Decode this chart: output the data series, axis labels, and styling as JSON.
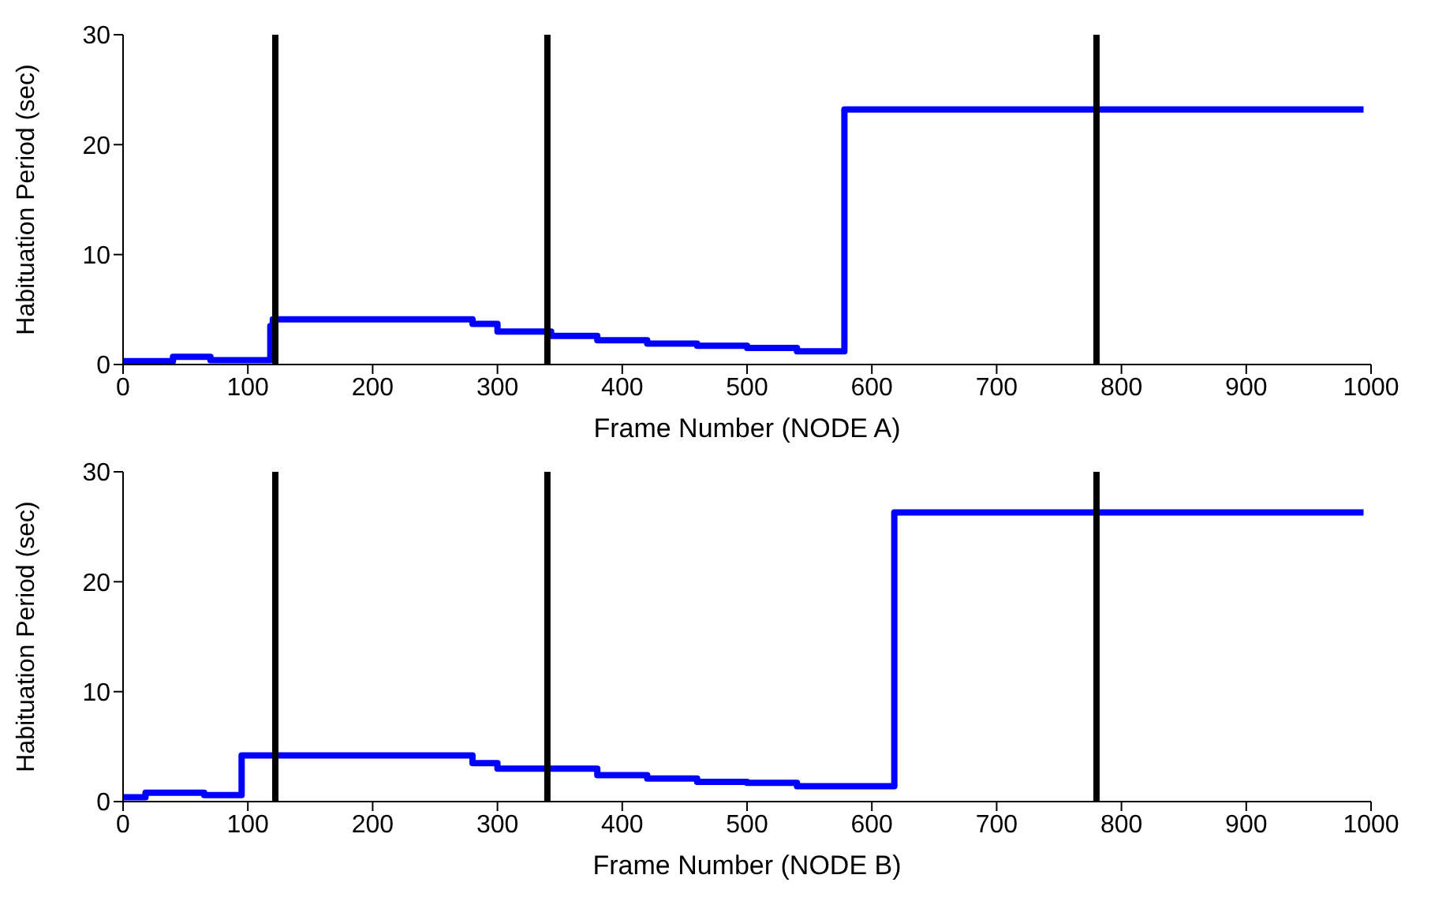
{
  "chart_data": [
    {
      "type": "step",
      "xlabel": "Frame Number (NODE A)",
      "ylabel": "Habituation Period (sec)",
      "xlim": [
        0,
        1000
      ],
      "xticks": [
        0,
        100,
        200,
        300,
        400,
        500,
        600,
        700,
        800,
        900,
        1000
      ],
      "ylim": [
        0,
        30
      ],
      "yticks": [
        0,
        10,
        20,
        30
      ],
      "series": [
        {
          "color": "#0000ff",
          "x": [
            0,
            40,
            70,
            118,
            120,
            280,
            300,
            343,
            380,
            420,
            460,
            500,
            540,
            578,
            994
          ],
          "values": [
            0.3,
            0.7,
            0.4,
            3.5,
            4.1,
            3.7,
            3.0,
            2.6,
            2.2,
            1.9,
            1.7,
            1.5,
            1.2,
            23.2,
            23.2
          ]
        }
      ],
      "ref_lines": [
        {
          "axis": "x",
          "value": 122,
          "color": "#000000"
        },
        {
          "axis": "x",
          "value": 340,
          "color": "#000000"
        },
        {
          "axis": "x",
          "value": 780,
          "color": "#000000"
        }
      ]
    },
    {
      "type": "step",
      "xlabel": "Frame Number (NODE B)",
      "ylabel": "Habituation Period (sec)",
      "xlim": [
        0,
        1000
      ],
      "xticks": [
        0,
        100,
        200,
        300,
        400,
        500,
        600,
        700,
        800,
        900,
        1000
      ],
      "ylim": [
        0,
        30
      ],
      "yticks": [
        0,
        10,
        20,
        30
      ],
      "series": [
        {
          "color": "#0000ff",
          "x": [
            0,
            18,
            65,
            95,
            280,
            300,
            380,
            420,
            460,
            500,
            540,
            618,
            994
          ],
          "values": [
            0.4,
            0.8,
            0.6,
            4.2,
            3.5,
            3.0,
            2.4,
            2.1,
            1.8,
            1.7,
            1.4,
            26.3,
            26.3
          ]
        }
      ],
      "ref_lines": [
        {
          "axis": "x",
          "value": 122,
          "color": "#000000"
        },
        {
          "axis": "x",
          "value": 340,
          "color": "#000000"
        },
        {
          "axis": "x",
          "value": 780,
          "color": "#000000"
        }
      ]
    }
  ]
}
